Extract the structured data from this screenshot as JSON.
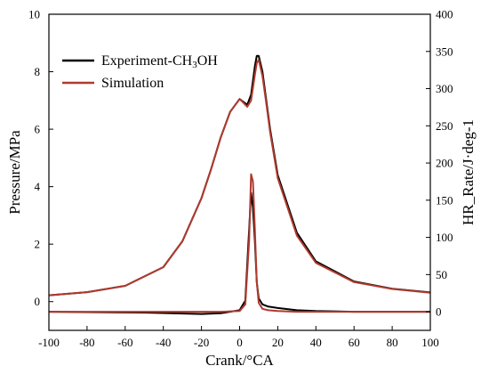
{
  "chart_data": {
    "type": "line",
    "xlabel": "Crank/°CA",
    "ylabel_left": "Pressure/MPa",
    "ylabel_right": "HR_Rate/J·deg-1",
    "xlim": [
      -100,
      100
    ],
    "ylim_left": [
      -1,
      10
    ],
    "ylim_right": [
      -25,
      400
    ],
    "x_ticks": [
      -100,
      -80,
      -60,
      -40,
      -20,
      0,
      20,
      40,
      60,
      80,
      100
    ],
    "y_left_ticks": [
      0,
      2,
      4,
      6,
      8,
      10
    ],
    "y_right_ticks": [
      0,
      50,
      100,
      150,
      200,
      250,
      300,
      350,
      400
    ],
    "grid": false,
    "legend": {
      "position": "top-left",
      "entries": [
        {
          "label_main": "Experiment-CH",
          "label_sub": "3",
          "label_tail": "OH",
          "color": "#000000"
        },
        {
          "label_main": "Simulation",
          "label_sub": "",
          "label_tail": "",
          "color": "#b03a2e"
        }
      ]
    },
    "series": [
      {
        "name": "Experiment-CH3OH pressure",
        "axis": "left",
        "color": "#000000",
        "x": [
          -100,
          -80,
          -60,
          -40,
          -30,
          -20,
          -15,
          -10,
          -5,
          0,
          2,
          4,
          6,
          8,
          9,
          10,
          12,
          14,
          16,
          20,
          30,
          40,
          60,
          80,
          100
        ],
        "y": [
          0.22,
          0.33,
          0.55,
          1.2,
          2.1,
          3.6,
          4.6,
          5.7,
          6.6,
          7.05,
          6.95,
          6.85,
          7.2,
          8.2,
          8.55,
          8.55,
          8.0,
          7.0,
          6.0,
          4.4,
          2.4,
          1.4,
          0.7,
          0.45,
          0.32
        ]
      },
      {
        "name": "Simulation pressure",
        "axis": "left",
        "color": "#b03a2e",
        "x": [
          -100,
          -80,
          -60,
          -40,
          -30,
          -20,
          -15,
          -10,
          -5,
          0,
          2,
          4,
          6,
          8,
          9,
          10,
          12,
          14,
          16,
          20,
          30,
          40,
          60,
          80,
          100
        ],
        "y": [
          0.22,
          0.33,
          0.55,
          1.2,
          2.1,
          3.6,
          4.6,
          5.7,
          6.6,
          7.05,
          6.92,
          6.78,
          7.0,
          7.9,
          8.3,
          8.42,
          7.85,
          6.9,
          5.9,
          4.3,
          2.3,
          1.35,
          0.68,
          0.44,
          0.31
        ]
      },
      {
        "name": "Experiment-CH3OH heat release rate",
        "axis": "right",
        "color": "#000000",
        "x": [
          -100,
          -50,
          -20,
          -10,
          0,
          3,
          5,
          6,
          7,
          8,
          9,
          10,
          12,
          15,
          20,
          30,
          40,
          60,
          80,
          100
        ],
        "y": [
          0,
          -1,
          -3,
          -2,
          2,
          15,
          110,
          160,
          140,
          95,
          40,
          18,
          10,
          7,
          5,
          2,
          1,
          0,
          0,
          0
        ]
      },
      {
        "name": "Simulation heat release rate",
        "axis": "right",
        "color": "#b03a2e",
        "x": [
          -100,
          -50,
          -20,
          -10,
          0,
          3,
          5,
          6,
          7,
          8,
          9,
          10,
          12,
          15,
          20,
          30,
          40,
          60,
          80,
          100
        ],
        "y": [
          0,
          0,
          0,
          0,
          1,
          10,
          95,
          185,
          175,
          110,
          40,
          12,
          4,
          2,
          1,
          0,
          0,
          0,
          0,
          0
        ]
      }
    ]
  }
}
